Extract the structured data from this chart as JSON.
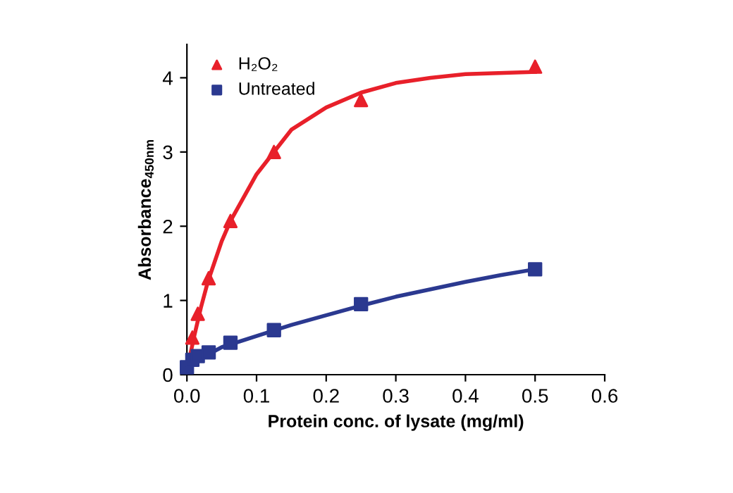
{
  "chart_data": {
    "type": "scatter",
    "xlabel": "Protein conc. of lysate (mg/ml)",
    "ylabel": "Absorbance$_{450nm}$",
    "xlim": [
      0,
      0.6
    ],
    "xticks": [
      {
        "value": 0,
        "label": "0.0"
      },
      0.1,
      0.2,
      0.3,
      0.4,
      0.5,
      0.6
    ],
    "ylim": [
      0,
      4.45
    ],
    "yticks": [
      0,
      1,
      2,
      3,
      4
    ],
    "legend": "top left",
    "grid": false,
    "series": [
      {
        "name": "H₂O₂",
        "marker": "triangle",
        "color": "#e8202a",
        "x": [
          0.0078,
          0.0156,
          0.03125,
          0.0625,
          0.125,
          0.25,
          0.5
        ],
        "values": [
          0.5,
          0.82,
          1.3,
          2.07,
          3.0,
          3.7,
          4.15
        ]
      },
      {
        "name": "Untreated",
        "marker": "square",
        "color": "#2b3990",
        "x": [
          0,
          0.0078,
          0.0156,
          0.03125,
          0.0625,
          0.125,
          0.25,
          0.5
        ],
        "values": [
          0.1,
          0.2,
          0.25,
          0.3,
          0.43,
          0.6,
          0.95,
          1.42
        ]
      },
      {
        "type": "line",
        "marker": "none",
        "color": "#e8202a",
        "x": [
          0,
          0.01,
          0.02,
          0.03,
          0.05,
          0.0625,
          0.1,
          0.125,
          0.15,
          0.2,
          0.25,
          0.3,
          0.35,
          0.4,
          0.5
        ],
        "values": [
          0.05,
          0.5,
          0.9,
          1.25,
          1.8,
          2.07,
          2.7,
          3.0,
          3.3,
          3.6,
          3.8,
          3.93,
          4.0,
          4.05,
          4.08
        ]
      },
      {
        "type": "line",
        "marker": "none",
        "color": "#2b3990",
        "x": [
          0,
          0.02,
          0.05,
          0.1,
          0.15,
          0.2,
          0.25,
          0.3,
          0.35,
          0.4,
          0.45,
          0.5
        ],
        "values": [
          0.1,
          0.22,
          0.37,
          0.52,
          0.67,
          0.8,
          0.93,
          1.05,
          1.15,
          1.25,
          1.34,
          1.42
        ]
      }
    ]
  }
}
